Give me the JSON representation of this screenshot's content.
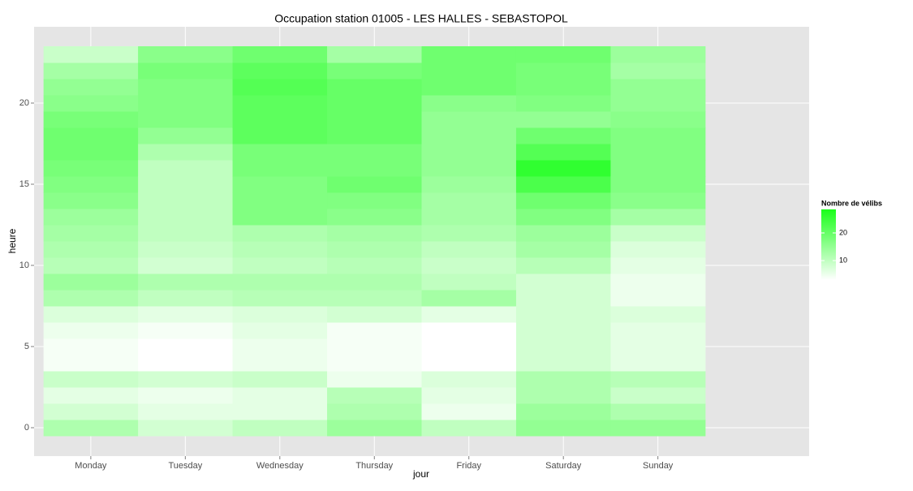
{
  "chart_data": {
    "type": "heatmap",
    "title": "Occupation station 01005 - LES HALLES - SEBASTOPOL",
    "xlabel": "jour",
    "ylabel": "heure",
    "categories": [
      "Monday",
      "Tuesday",
      "Wednesday",
      "Thursday",
      "Friday",
      "Saturday",
      "Sunday"
    ],
    "y": [
      0,
      1,
      2,
      3,
      4,
      5,
      6,
      7,
      8,
      9,
      10,
      11,
      12,
      13,
      14,
      15,
      16,
      17,
      18,
      19,
      20,
      21,
      22,
      23
    ],
    "values": [
      [
        12,
        8,
        6,
        9,
        4,
        4,
        5,
        7,
        12,
        14,
        11,
        12,
        13,
        14,
        16,
        17,
        18,
        19,
        19,
        18,
        16,
        15,
        13,
        9
      ],
      [
        8,
        6,
        5,
        8,
        3,
        3,
        4,
        6,
        10,
        12,
        8,
        9,
        10,
        10,
        10,
        10,
        10,
        12,
        15,
        17,
        17,
        17,
        18,
        16
      ],
      [
        10,
        6,
        6,
        9,
        5,
        5,
        6,
        7,
        11,
        12,
        10,
        11,
        12,
        17,
        17,
        17,
        18,
        18,
        21,
        21,
        21,
        22,
        21,
        19
      ],
      [
        14,
        12,
        11,
        5,
        4,
        4,
        4,
        8,
        11,
        12,
        11,
        12,
        13,
        16,
        17,
        19,
        18,
        18,
        20,
        20,
        20,
        20,
        18,
        13
      ],
      [
        10,
        5,
        6,
        7,
        3,
        3,
        3,
        6,
        13,
        10,
        9,
        10,
        12,
        13,
        13,
        14,
        15,
        15,
        15,
        15,
        16,
        19,
        19,
        19
      ],
      [
        15,
        14,
        12,
        12,
        8,
        8,
        8,
        8,
        8,
        8,
        11,
        13,
        14,
        17,
        19,
        23,
        26,
        22,
        19,
        15,
        17,
        18,
        18,
        19
      ],
      [
        15,
        12,
        9,
        11,
        6,
        6,
        6,
        7,
        5,
        5,
        6,
        7,
        9,
        13,
        16,
        17,
        17,
        17,
        17,
        16,
        15,
        15,
        13,
        14
      ]
    ],
    "ylim": [
      -1.75,
      24.7
    ],
    "yticks": [
      0,
      5,
      10,
      15,
      20
    ],
    "grid": true,
    "colorbar": {
      "title": "Nombre de vélibs",
      "lim": [
        3,
        28.5
      ],
      "ticks": [
        10,
        20
      ],
      "low": "#ffffff",
      "high": "#1aff1a"
    }
  }
}
